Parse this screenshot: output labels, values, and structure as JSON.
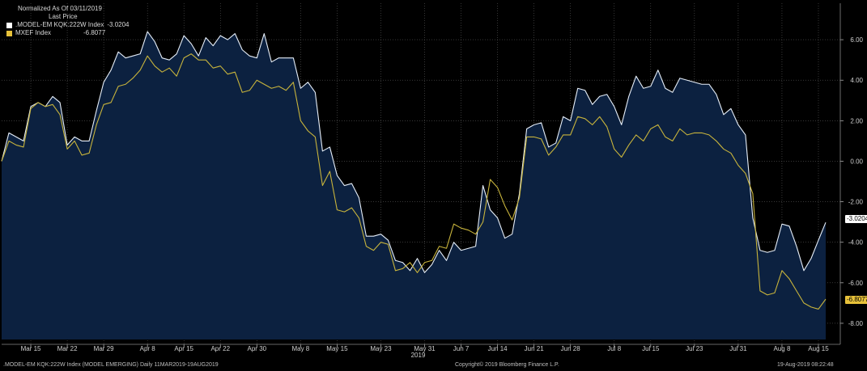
{
  "legend": {
    "header_line1": "Normalized As Of 03/11/2019",
    "header_line2": "Last Price",
    "items": [
      {
        "label": ".MODEL-EM KQK:222W Index",
        "value": "-3.0204",
        "color": "#ffffff"
      },
      {
        "label": "MXEF Index",
        "value": "-6.8077",
        "color": "#e8c23a"
      }
    ]
  },
  "footer": {
    "left": ".MODEL-EM KQK:222W Index (MODEL EMERGING)  Daily 11MAR2019-19AUG2019",
    "center": "Copyright© 2019 Bloomberg Finance L.P.",
    "right": "19-Aug-2019 08:22:48"
  },
  "colors": {
    "background": "#000000",
    "area_fill": "#0c2140",
    "grid": "#5a5a5a",
    "series1": "#e6eef8",
    "series2": "#c8b43c",
    "tag1_bg": "#ffffff",
    "tag2_bg": "#e8c23a"
  },
  "chart_data": {
    "type": "line",
    "title": "Normalized As Of 03/11/2019",
    "xlabel": "2019",
    "ylabel": "",
    "ylim": [
      -8.8,
      7.8
    ],
    "y_ticks": [
      6,
      4,
      2,
      0,
      -2,
      -4,
      -6,
      -8
    ],
    "y_tick_labels": [
      "6.00",
      "4.00",
      "2.00",
      "0.00",
      "-2.00",
      "-4.00",
      "-6.00",
      "-8.00"
    ],
    "x_ticks": [
      {
        "label": "Mar 15",
        "index": 4
      },
      {
        "label": "Mar 22",
        "index": 9
      },
      {
        "label": "Mar 29",
        "index": 14
      },
      {
        "label": "Apr 8",
        "index": 20
      },
      {
        "label": "Apr 15",
        "index": 25
      },
      {
        "label": "Apr 22",
        "index": 30
      },
      {
        "label": "Apr 30",
        "index": 35
      },
      {
        "label": "May 8",
        "index": 41
      },
      {
        "label": "May 15",
        "index": 46
      },
      {
        "label": "May 23",
        "index": 52
      },
      {
        "label": "May 31",
        "index": 58
      },
      {
        "label": "Jun 7",
        "index": 63
      },
      {
        "label": "Jun 14",
        "index": 68
      },
      {
        "label": "Jun 21",
        "index": 73
      },
      {
        "label": "Jun 28",
        "index": 78
      },
      {
        "label": "Jul 8",
        "index": 84
      },
      {
        "label": "Jul 15",
        "index": 89
      },
      {
        "label": "Jul 23",
        "index": 95
      },
      {
        "label": "Jul 31",
        "index": 101
      },
      {
        "label": "Aug 8",
        "index": 107
      },
      {
        "label": "Aug 15",
        "index": 112
      }
    ],
    "x_year_label": "2019",
    "series": [
      {
        "name": ".MODEL-EM KQK:222W Index",
        "values": [
          0.0,
          1.4,
          1.2,
          1.0,
          2.7,
          2.9,
          2.7,
          3.2,
          2.9,
          0.8,
          1.2,
          1.0,
          1.0,
          2.5,
          3.9,
          4.5,
          5.4,
          5.1,
          5.2,
          5.3,
          6.4,
          5.9,
          5.1,
          5.0,
          5.3,
          6.2,
          5.8,
          5.2,
          6.1,
          5.7,
          6.2,
          6.0,
          6.3,
          5.5,
          5.2,
          5.1,
          6.3,
          4.9,
          5.1,
          5.1,
          5.1,
          3.6,
          3.9,
          3.4,
          0.5,
          0.7,
          -0.7,
          -1.2,
          -1.1,
          -1.8,
          -3.7,
          -3.7,
          -3.6,
          -3.9,
          -4.9,
          -5.0,
          -5.4,
          -4.8,
          -5.5,
          -5.1,
          -4.4,
          -4.9,
          -4.0,
          -4.4,
          -4.3,
          -4.2,
          -1.2,
          -2.4,
          -2.8,
          -3.8,
          -3.6,
          -1.6,
          1.6,
          1.8,
          1.9,
          0.7,
          0.9,
          2.2,
          2.0,
          3.6,
          3.5,
          2.8,
          3.2,
          3.3,
          2.7,
          1.8,
          3.2,
          4.2,
          3.6,
          3.7,
          4.5,
          3.6,
          3.4,
          4.1,
          4.0,
          3.9,
          3.8,
          3.8,
          3.3,
          2.3,
          2.6,
          1.8,
          1.3,
          -2.8,
          -4.4,
          -4.5,
          -4.4,
          -3.1,
          -3.2,
          -4.2,
          -5.4,
          -4.8,
          -3.9,
          -3.02
        ]
      },
      {
        "name": "MXEF Index",
        "values": [
          0.0,
          1.0,
          0.8,
          0.7,
          2.6,
          2.9,
          2.7,
          2.8,
          2.3,
          0.6,
          1.0,
          0.3,
          0.4,
          1.8,
          2.8,
          2.9,
          3.7,
          3.8,
          4.1,
          4.5,
          5.2,
          4.7,
          4.4,
          4.6,
          4.2,
          5.1,
          5.3,
          5.0,
          5.0,
          4.6,
          4.7,
          4.3,
          4.4,
          3.4,
          3.5,
          4.0,
          3.8,
          3.6,
          3.7,
          3.5,
          3.9,
          2.0,
          1.5,
          1.2,
          -1.2,
          -0.5,
          -2.4,
          -2.5,
          -2.3,
          -2.8,
          -4.2,
          -4.4,
          -4.0,
          -4.1,
          -5.4,
          -5.3,
          -5.0,
          -5.5,
          -5.0,
          -4.9,
          -4.2,
          -4.3,
          -3.1,
          -3.3,
          -3.4,
          -3.6,
          -3.0,
          -0.9,
          -1.3,
          -2.2,
          -2.9,
          -1.8,
          1.2,
          1.2,
          1.1,
          0.3,
          0.7,
          1.3,
          1.3,
          2.2,
          2.1,
          1.8,
          2.2,
          1.7,
          0.6,
          0.2,
          0.8,
          1.3,
          1.0,
          1.6,
          1.8,
          1.2,
          1.0,
          1.6,
          1.3,
          1.4,
          1.4,
          1.3,
          1.0,
          0.6,
          0.4,
          -0.2,
          -0.6,
          -1.6,
          -6.4,
          -6.6,
          -6.5,
          -5.4,
          -5.8,
          -6.4,
          -7.0,
          -7.2,
          -7.3,
          -6.81
        ]
      }
    ],
    "last_values": {
      "series1": "-3.0204",
      "series2": "-6.8077"
    },
    "grid": true,
    "legend_position": "top-left"
  }
}
